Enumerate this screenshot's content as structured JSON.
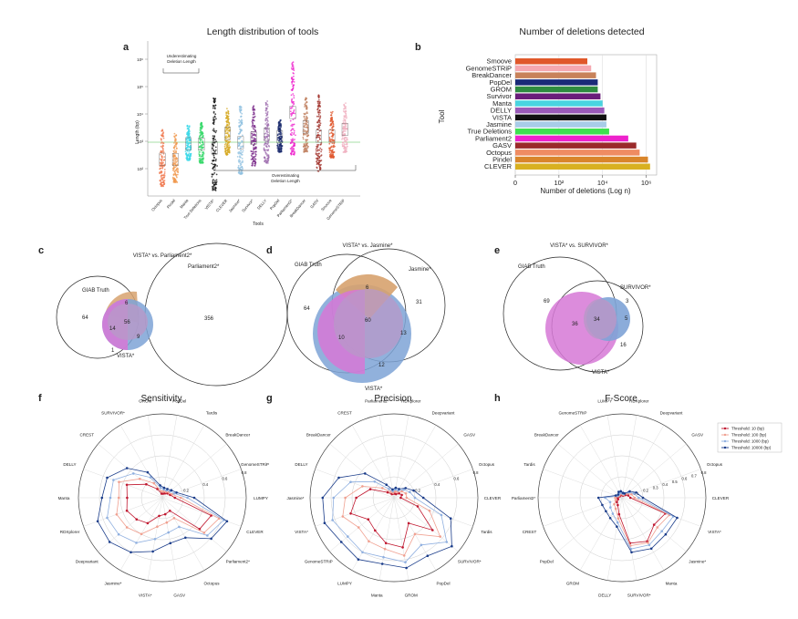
{
  "panel_letters": [
    "a",
    "b",
    "c",
    "d",
    "e",
    "f",
    "g",
    "h"
  ],
  "panel_a": {
    "title": "Length distribution of tools",
    "ylabel": "Length (bp)",
    "xlabel": "Tools",
    "yticks": [
      "10²",
      "10³",
      "10⁴",
      "10⁵",
      "10⁶"
    ],
    "annotations": [
      "Underestimating\nDeletion Length",
      "Overestimating\nDeletion Length"
    ],
    "tools": [
      {
        "name": "Octopus",
        "color": "#f07a50",
        "lo": 1.35,
        "hi": 3.5
      },
      {
        "name": "Pindel",
        "color": "#f09a50",
        "lo": 1.5,
        "hi": 3.3
      },
      {
        "name": "Manta",
        "color": "#3ad8e8",
        "lo": 2.3,
        "hi": 3.6
      },
      {
        "name": "True Deletions",
        "color": "#35d86a",
        "lo": 2.2,
        "hi": 3.7
      },
      {
        "name": "VISTA*",
        "color": "#111111",
        "lo": 1.2,
        "hi": 4.6
      },
      {
        "name": "CLEVER",
        "color": "#d6a820",
        "lo": 2.5,
        "hi": 4.2
      },
      {
        "name": "Jasmine*",
        "color": "#8fc0e0",
        "lo": 1.8,
        "hi": 4.3
      },
      {
        "name": "Survivor*",
        "color": "#7a2a8a",
        "lo": 2.1,
        "hi": 4.3
      },
      {
        "name": "DELLY",
        "color": "#a070b0",
        "lo": 2.2,
        "hi": 4.5
      },
      {
        "name": "PopDel",
        "color": "#1a2a6c",
        "lo": 2.6,
        "hi": 3.8
      },
      {
        "name": "Parliament2*",
        "color": "#ee22cc",
        "lo": 2.5,
        "hi": 5.9
      },
      {
        "name": "BreakDancer",
        "color": "#c08060",
        "lo": 2.6,
        "hi": 4.6
      },
      {
        "name": "GASV",
        "color": "#a0302a",
        "lo": 1.9,
        "hi": 4.7
      },
      {
        "name": "Smoove",
        "color": "#e05a30",
        "lo": 2.4,
        "hi": 4.1
      },
      {
        "name": "GenomeSTRiP",
        "color": "#f0b0c0",
        "lo": 2.6,
        "hi": 4.4
      }
    ]
  },
  "panel_b": {
    "title": "Number of deletions detected",
    "ylabel": "Tool",
    "xlabel": "Number of deletions (Log n)",
    "xticks": [
      "0",
      "10²",
      "10⁴",
      "10⁶"
    ]
  },
  "chart_data": [
    {
      "type": "bar",
      "title": "Number of deletions detected",
      "xlabel": "Number of deletions (Log n)",
      "ylabel": "Tool",
      "xscale": "log",
      "categories": [
        "Smoove",
        "GenomeSTRiP",
        "BreakDancer",
        "PopDel",
        "GROM",
        "Survivor",
        "Manta",
        "DELLY",
        "VISTA",
        "Jasmine",
        "True Deletions",
        "Parliament2",
        "GASV",
        "Octopus",
        "Pindel",
        "CLEVER"
      ],
      "values": [
        2000,
        3000,
        5000,
        6000,
        6000,
        8000,
        10000,
        12000,
        15000,
        15000,
        20000,
        150000,
        350000,
        500000,
        1200000,
        1500000
      ],
      "colors": [
        "#e0582a",
        "#f5a8b0",
        "#c8825a",
        "#1a2a78",
        "#2e8b40",
        "#6a1e7a",
        "#4ad4e0",
        "#9a5ab8",
        "#111111",
        "#a8cce8",
        "#3ee050",
        "#ee22cc",
        "#9a2a2a",
        "#ef8c62",
        "#d9852a",
        "#d8b020"
      ],
      "xlim": [
        1,
        3000000
      ]
    },
    {
      "type": "radar",
      "title": "Sensitivity",
      "categories": [
        "PopDel",
        "Tardis",
        "BreakDancer",
        "GenomeSTRiP",
        "LUMPY",
        "CLEVER",
        "Parliament2*",
        "Octopus",
        "GASV",
        "VISTA*",
        "Jasmine*",
        "Deepvariant",
        "RDXplorer",
        "Manta",
        "DELLY",
        "CREST",
        "SURVIVOR*",
        "GROM"
      ],
      "rticks": [
        "0.2",
        "0.4",
        "0.6",
        "0.8"
      ],
      "series": [
        {
          "values": [
            0.05,
            0.06,
            0.08,
            0.1,
            0.15,
            0.62,
            0.58,
            0.18,
            0.2,
            0.22,
            0.35,
            0.4,
            0.45,
            0.42,
            0.45,
            0.25,
            0.12,
            0.05
          ],
          "color": "#c01830"
        },
        {
          "values": [
            0.08,
            0.08,
            0.1,
            0.12,
            0.22,
            0.72,
            0.65,
            0.28,
            0.3,
            0.35,
            0.5,
            0.55,
            0.58,
            0.52,
            0.55,
            0.35,
            0.2,
            0.08
          ],
          "color": "#f0a090"
        },
        {
          "values": [
            0.1,
            0.1,
            0.12,
            0.15,
            0.3,
            0.78,
            0.7,
            0.4,
            0.42,
            0.5,
            0.62,
            0.68,
            0.7,
            0.62,
            0.62,
            0.45,
            0.28,
            0.12
          ],
          "color": "#90b0e0"
        },
        {
          "values": [
            0.12,
            0.12,
            0.14,
            0.18,
            0.38,
            0.82,
            0.76,
            0.55,
            0.55,
            0.65,
            0.75,
            0.82,
            0.82,
            0.72,
            0.7,
            0.55,
            0.35,
            0.15
          ],
          "color": "#1a3c8a"
        }
      ]
    },
    {
      "type": "radar",
      "title": "Precision",
      "categories": [
        "RDXplorer",
        "Deepvariant",
        "GASV",
        "Octopus",
        "CLEVER",
        "Tardis",
        "SURVIVOR*",
        "PopDel",
        "GROM",
        "Manta",
        "LUMPY",
        "GenomeSTRiP",
        "VISTA*",
        "Jasmine*",
        "DELLY",
        "BreakDancer",
        "CREST",
        "Parliament2*"
      ],
      "rticks": [
        "0.2",
        "0.4",
        "0.6",
        "0.8"
      ],
      "series": [
        {
          "values": [
            0.05,
            0.05,
            0.08,
            0.1,
            0.08,
            0.3,
            0.6,
            0.35,
            0.6,
            0.55,
            0.45,
            0.4,
            0.55,
            0.45,
            0.3,
            0.1,
            0.05,
            0.05
          ],
          "color": "#c01830"
        },
        {
          "values": [
            0.08,
            0.08,
            0.12,
            0.15,
            0.15,
            0.45,
            0.72,
            0.5,
            0.7,
            0.62,
            0.6,
            0.55,
            0.65,
            0.58,
            0.4,
            0.18,
            0.08,
            0.06
          ],
          "color": "#f0a090"
        },
        {
          "values": [
            0.1,
            0.1,
            0.15,
            0.2,
            0.25,
            0.6,
            0.82,
            0.65,
            0.78,
            0.72,
            0.75,
            0.72,
            0.78,
            0.72,
            0.55,
            0.3,
            0.12,
            0.08
          ],
          "color": "#90b0e0"
        },
        {
          "values": [
            0.12,
            0.12,
            0.18,
            0.25,
            0.35,
            0.72,
            0.9,
            0.8,
            0.85,
            0.8,
            0.85,
            0.82,
            0.88,
            0.85,
            0.7,
            0.45,
            0.18,
            0.1
          ],
          "color": "#1a3c8a"
        }
      ]
    },
    {
      "type": "radar",
      "title": "F-Score",
      "categories": [
        "RDXplorer",
        "Deepvariant",
        "GASV",
        "Octopus",
        "CLEVER",
        "VISTA*",
        "Jasmine*",
        "Manta",
        "SURVIVOR*",
        "DELLY",
        "GROM",
        "PopDel",
        "CREST",
        "Parliament2*",
        "Tardis",
        "BreakDancer",
        "GenomeSTRiP",
        "LUMPY"
      ],
      "rticks": [
        "0.1",
        "0.2",
        "0.3",
        "0.4",
        "0.5",
        "0.6",
        "0.7",
        "0.8"
      ],
      "series": [
        {
          "name": "Threshold: 10 (bp)",
          "values": [
            0.03,
            0.03,
            0.05,
            0.08,
            0.1,
            0.55,
            0.5,
            0.6,
            0.55,
            0.2,
            0.1,
            0.08,
            0.05,
            0.05,
            0.04,
            0.03,
            0.04,
            0.04
          ],
          "color": "#c01830"
        },
        {
          "name": "Threshold: 100 (bp)",
          "values": [
            0.04,
            0.04,
            0.08,
            0.12,
            0.15,
            0.6,
            0.55,
            0.62,
            0.58,
            0.25,
            0.15,
            0.12,
            0.08,
            0.08,
            0.05,
            0.04,
            0.05,
            0.05
          ],
          "color": "#f0a090"
        },
        {
          "name": "Threshold: 1000 (bp)",
          "values": [
            0.05,
            0.05,
            0.1,
            0.15,
            0.2,
            0.65,
            0.62,
            0.65,
            0.62,
            0.3,
            0.22,
            0.18,
            0.15,
            0.2,
            0.06,
            0.05,
            0.06,
            0.06
          ],
          "color": "#90b0e0"
        },
        {
          "name": "Threshold: 10000 (bp)",
          "values": [
            0.06,
            0.06,
            0.12,
            0.18,
            0.25,
            0.7,
            0.68,
            0.7,
            0.66,
            0.35,
            0.28,
            0.25,
            0.25,
            0.28,
            0.08,
            0.06,
            0.08,
            0.08
          ],
          "color": "#1a3c8a"
        }
      ]
    }
  ],
  "venn_c": {
    "title": "VISTA* vs. Parliament2*",
    "labels": [
      "GIAB Truth",
      "Parliament2*",
      "VISTA*"
    ],
    "counts": [
      "64",
      "6",
      "356",
      "14",
      "56",
      "9",
      "1"
    ]
  },
  "venn_d": {
    "title": "VISTA* vs. Jasmine*",
    "labels": [
      "GIAB Truth",
      "Jasmine*",
      "VISTA*"
    ],
    "counts": [
      "64",
      "6",
      "31",
      "60",
      "10",
      "13",
      "12"
    ]
  },
  "venn_e": {
    "title": "VISTA* vs. SURVIVOR*",
    "labels": [
      "GIAB Truth",
      "SURVIVOR*",
      "VISTA*"
    ],
    "counts": [
      "69",
      "36",
      "34",
      "5",
      "3",
      "16"
    ]
  }
}
